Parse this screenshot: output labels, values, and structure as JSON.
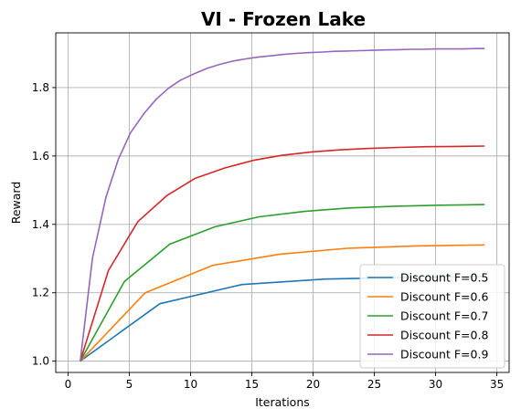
{
  "chart_data": {
    "type": "line",
    "title": "VI - Frozen Lake",
    "xlabel": "Iterations",
    "ylabel": "Reward",
    "xlim": [
      -1,
      36
    ],
    "ylim": [
      0.967,
      1.96
    ],
    "xticks": [
      0,
      5,
      10,
      15,
      20,
      25,
      30,
      35
    ],
    "yticks": [
      1.0,
      1.2,
      1.4,
      1.6,
      1.8
    ],
    "ytick_labels": [
      "1.0",
      "1.2",
      "1.4",
      "1.6",
      "1.8"
    ],
    "grid": true,
    "legend_position": "lower-right",
    "series": [
      {
        "name": "Discount F=0.5",
        "color": "#1f77b4",
        "x": [
          1,
          7.5,
          14.2,
          21,
          27.5,
          34
        ],
        "y": [
          1.0,
          1.168,
          1.224,
          1.24,
          1.245,
          1.248
        ]
      },
      {
        "name": "Discount F=0.6",
        "color": "#ff7f0e",
        "x": [
          1,
          6.3,
          11.8,
          17.3,
          22.8,
          28.4,
          34
        ],
        "y": [
          1.0,
          1.2,
          1.28,
          1.313,
          1.33,
          1.337,
          1.34
        ]
      },
      {
        "name": "Discount F=0.7",
        "color": "#2ca02c",
        "x": [
          1,
          4.6,
          8.3,
          12.0,
          15.6,
          19.3,
          23.0,
          26.7,
          30.3,
          34
        ],
        "y": [
          1.0,
          1.233,
          1.342,
          1.393,
          1.422,
          1.438,
          1.448,
          1.453,
          1.456,
          1.458
        ]
      },
      {
        "name": "Discount F=0.8",
        "color": "#d62728",
        "x": [
          1,
          3.3,
          5.7,
          8.1,
          10.4,
          12.8,
          15.2,
          17.5,
          19.9,
          22.3,
          24.6,
          27.0,
          29.3,
          31.7,
          34
        ],
        "y": [
          1.0,
          1.265,
          1.408,
          1.485,
          1.535,
          1.565,
          1.588,
          1.602,
          1.612,
          1.618,
          1.622,
          1.625,
          1.627,
          1.628,
          1.629
        ]
      },
      {
        "name": "Discount F=0.9",
        "color": "#9467bd",
        "x": [
          1,
          2.0,
          3.1,
          4.1,
          5.1,
          6.2,
          7.2,
          8.2,
          9.2,
          10.4,
          11.4,
          12.4,
          13.4,
          14.5,
          15.5,
          16.6,
          17.6,
          18.6,
          19.6,
          20.8,
          21.8,
          22.8,
          23.8,
          24.9,
          25.9,
          27.0,
          28.0,
          29.0,
          30.0,
          31.2,
          32.2,
          33.2,
          34
        ],
        "y": [
          1.0,
          1.302,
          1.48,
          1.59,
          1.668,
          1.724,
          1.766,
          1.798,
          1.822,
          1.842,
          1.857,
          1.868,
          1.877,
          1.884,
          1.889,
          1.893,
          1.897,
          1.9,
          1.902,
          1.904,
          1.906,
          1.907,
          1.908,
          1.909,
          1.91,
          1.911,
          1.912,
          1.912,
          1.913,
          1.913,
          1.913,
          1.914,
          1.914
        ]
      }
    ]
  }
}
